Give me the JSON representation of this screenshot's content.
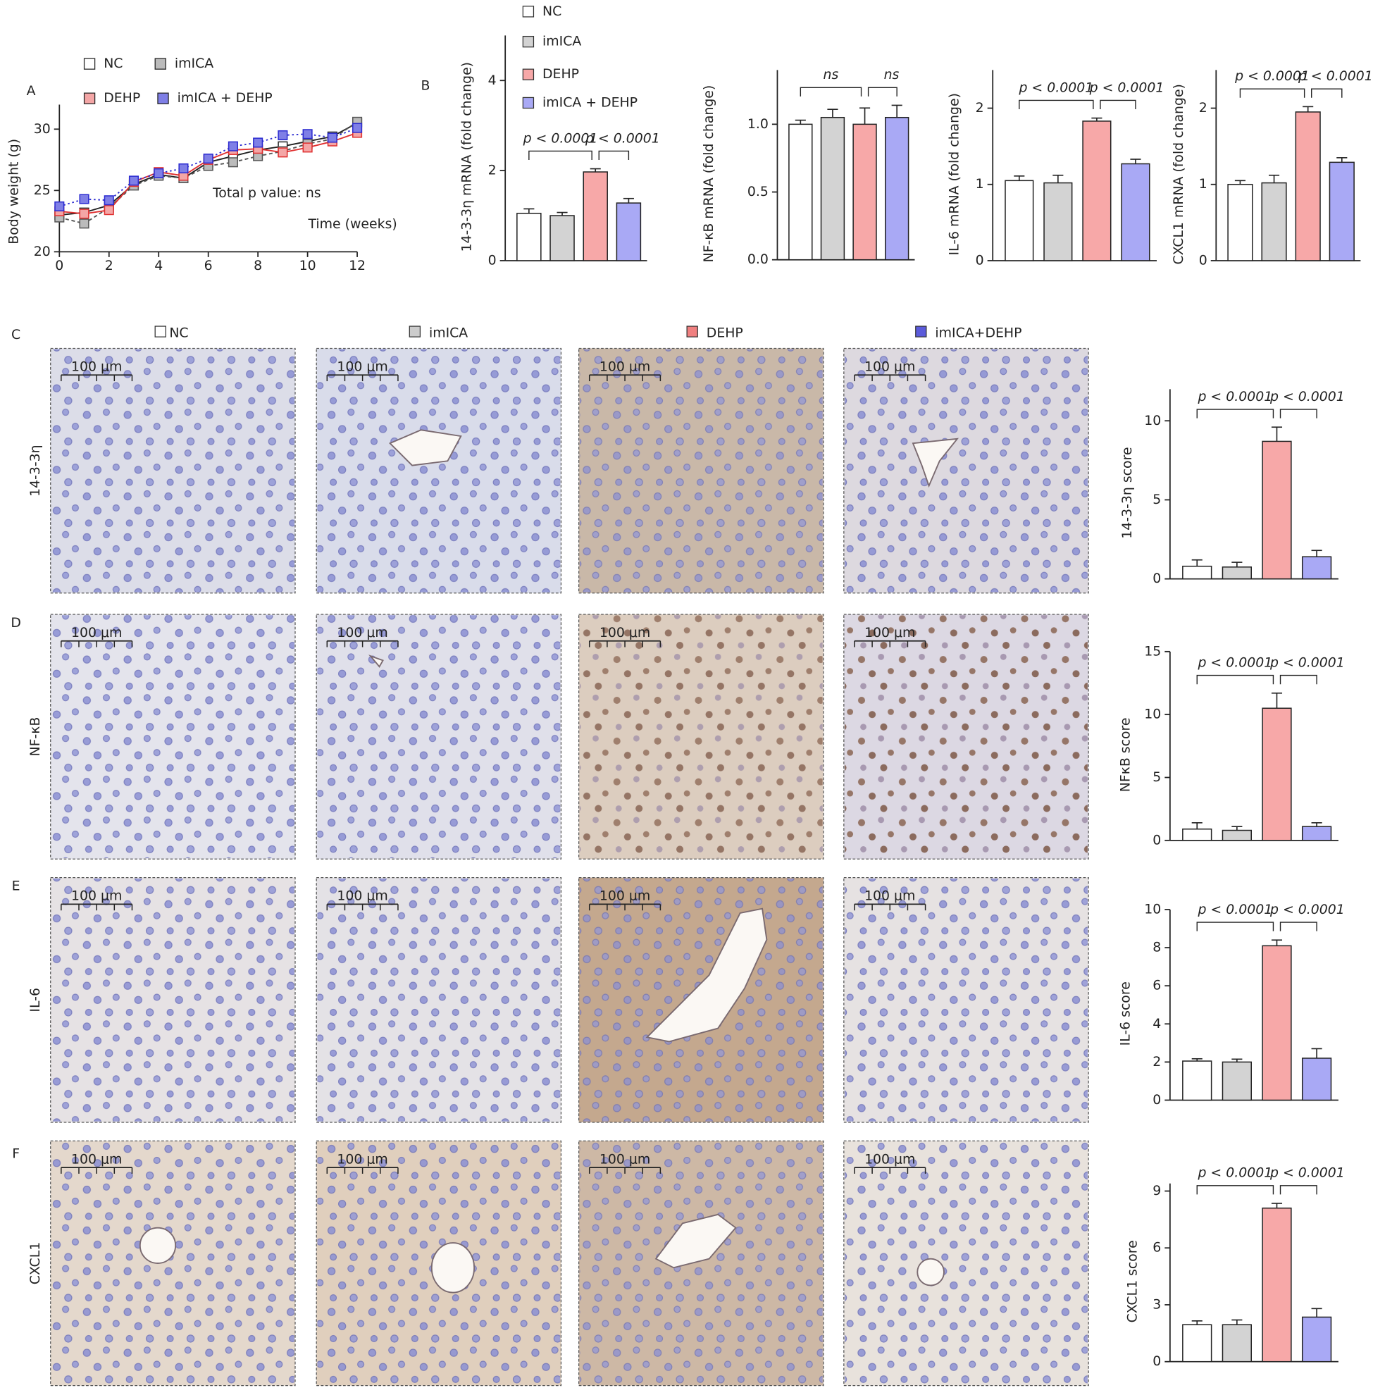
{
  "panel_labels": [
    "A",
    "B",
    "C",
    "D",
    "E",
    "F"
  ],
  "micrographs": {
    "columns": [
      "NC",
      "imICA",
      "DEHP",
      "imICA+DEHP"
    ],
    "column_colors": [
      "#ffffff",
      "#cccccc",
      "#f08080",
      "#5b5bdb"
    ],
    "rows": [
      "14-3-3η",
      "NF-κB",
      "IL-6",
      "CXCL1"
    ],
    "scale_bar": "100 μm"
  },
  "chart_data": [
    {
      "type": "line",
      "ylabel": "Body weight (g)",
      "xlabel": "Time (weeks)",
      "annotation": "Total p value: ns",
      "x": [
        0,
        1,
        2,
        3,
        4,
        5,
        6,
        7,
        8,
        9,
        10,
        11,
        12
      ],
      "xlim": [
        0,
        12
      ],
      "xticks": [
        0,
        2,
        4,
        6,
        8,
        10,
        12
      ],
      "ylim": [
        20,
        32
      ],
      "yticks": [
        20,
        25,
        30
      ],
      "series": [
        {
          "name": "NC",
          "color": "#222222",
          "marker_color": "#ffffff",
          "values": [
            23.0,
            23.2,
            23.8,
            25.5,
            26.3,
            26.0,
            27.3,
            27.8,
            28.3,
            28.6,
            29.0,
            29.4,
            30.5
          ]
        },
        {
          "name": "imICA",
          "color": "#555555",
          "marker_color": "#bbbbbb",
          "values": [
            22.8,
            22.3,
            23.6,
            25.4,
            26.2,
            26.0,
            27.0,
            27.3,
            27.8,
            28.2,
            28.8,
            29.2,
            30.6
          ]
        },
        {
          "name": "DEHP",
          "color": "#e03030",
          "marker_color": "#f4a6a6",
          "values": [
            23.3,
            23.1,
            23.4,
            25.7,
            26.5,
            26.2,
            27.5,
            28.3,
            28.4,
            28.1,
            28.5,
            29.0,
            29.7
          ]
        },
        {
          "name": "imICA + DEHP",
          "color": "#2b2bd0",
          "marker_color": "#7f7fe6",
          "values": [
            23.7,
            24.3,
            24.2,
            25.8,
            26.4,
            26.8,
            27.6,
            28.6,
            28.9,
            29.5,
            29.6,
            29.3,
            30.1
          ]
        }
      ]
    },
    {
      "type": "legend",
      "labels": [
        "NC",
        "imICA",
        "DEHP",
        "imICA + DEHP"
      ],
      "colors": [
        "#ffffff",
        "#d3d3d3",
        "#f7a8a8",
        "#a9a9f5"
      ]
    },
    {
      "type": "bar",
      "ylabel": "14-3-3η mRNA  (fold change)",
      "categories": [
        null,
        null,
        null,
        null
      ],
      "values": [
        1.05,
        1.0,
        1.97,
        1.28
      ],
      "errors": [
        0.1,
        0.07,
        0.07,
        0.1
      ],
      "colors": [
        "#ffffff",
        "#d3d3d3",
        "#f7a8a8",
        "#a9a9f5"
      ],
      "ylim": [
        0,
        5
      ],
      "yticks": [
        0,
        2,
        4
      ],
      "brackets": [
        "p < 0.0001",
        "p < 0.0001"
      ]
    },
    {
      "type": "bar",
      "ylabel": "NF-κB  mRNA  (fold change)",
      "categories": [
        null,
        null,
        null,
        null
      ],
      "values": [
        1.0,
        1.05,
        1.0,
        1.05
      ],
      "errors": [
        0.03,
        0.06,
        0.12,
        0.09
      ],
      "colors": [
        "#ffffff",
        "#d3d3d3",
        "#f7a8a8",
        "#a9a9f5"
      ],
      "ylim": [
        0,
        1.4
      ],
      "yticks": [
        {
          "value": 0,
          "label": "0.0"
        },
        0.5,
        {
          "value": 1,
          "label": "1.0"
        }
      ],
      "brackets": [
        "ns",
        "ns"
      ]
    },
    {
      "type": "bar",
      "ylabel": "IL-6 mRNA  (fold change)",
      "categories": [
        null,
        null,
        null,
        null
      ],
      "values": [
        1.05,
        1.02,
        1.83,
        1.27
      ],
      "errors": [
        0.06,
        0.1,
        0.04,
        0.06
      ],
      "colors": [
        "#ffffff",
        "#d3d3d3",
        "#f7a8a8",
        "#a9a9f5"
      ],
      "ylim": [
        0,
        2.5
      ],
      "yticks": [
        0,
        1,
        2
      ],
      "brackets": [
        "p < 0.0001",
        "p < 0.0001"
      ]
    },
    {
      "type": "bar",
      "ylabel": "CXCL1 mRNA  (fold change)",
      "categories": [
        null,
        null,
        null,
        null
      ],
      "values": [
        1.0,
        1.02,
        1.95,
        1.29
      ],
      "errors": [
        0.05,
        0.1,
        0.07,
        0.06
      ],
      "colors": [
        "#ffffff",
        "#d3d3d3",
        "#f7a8a8",
        "#a9a9f5"
      ],
      "ylim": [
        0,
        2.5
      ],
      "yticks": [
        0,
        1,
        2
      ],
      "brackets": [
        "p < 0.0001",
        "p < 0.0001"
      ]
    },
    {
      "type": "bar",
      "ylabel": "14-3-3η score",
      "categories": [
        null,
        null,
        null,
        null
      ],
      "values": [
        0.8,
        0.75,
        8.7,
        1.4
      ],
      "errors": [
        0.4,
        0.3,
        0.9,
        0.4
      ],
      "colors": [
        "#ffffff",
        "#d3d3d3",
        "#f7a8a8",
        "#a9a9f5"
      ],
      "ylim": [
        0,
        12
      ],
      "yticks": [
        0,
        5,
        10
      ],
      "brackets": [
        "p < 0.0001",
        "p < 0.0001"
      ]
    },
    {
      "type": "bar",
      "ylabel": "NFκB score",
      "categories": [
        null,
        null,
        null,
        null
      ],
      "values": [
        0.9,
        0.8,
        10.5,
        1.1
      ],
      "errors": [
        0.5,
        0.3,
        1.2,
        0.3
      ],
      "colors": [
        "#ffffff",
        "#d3d3d3",
        "#f7a8a8",
        "#a9a9f5"
      ],
      "ylim": [
        0,
        15
      ],
      "yticks": [
        0,
        5,
        10,
        15
      ],
      "brackets": [
        "p < 0.0001",
        "p < 0.0001"
      ]
    },
    {
      "type": "bar",
      "ylabel": "IL-6 score",
      "categories": [
        null,
        null,
        null,
        null
      ],
      "values": [
        2.05,
        2.0,
        8.1,
        2.2
      ],
      "errors": [
        0.12,
        0.15,
        0.3,
        0.5
      ],
      "colors": [
        "#ffffff",
        "#d3d3d3",
        "#f7a8a8",
        "#a9a9f5"
      ],
      "ylim": [
        0,
        10
      ],
      "yticks": [
        0,
        2,
        4,
        6,
        8,
        10
      ],
      "brackets": [
        "p < 0.0001",
        "p < 0.0001"
      ]
    },
    {
      "type": "bar",
      "ylabel": "CXCL1 score",
      "categories": [
        null,
        null,
        null,
        null
      ],
      "values": [
        1.95,
        1.95,
        8.1,
        2.35
      ],
      "errors": [
        0.2,
        0.25,
        0.25,
        0.45
      ],
      "colors": [
        "#ffffff",
        "#d3d3d3",
        "#f7a8a8",
        "#a9a9f5"
      ],
      "ylim": [
        0,
        9.4
      ],
      "yticks": [
        0,
        3,
        6,
        9
      ],
      "brackets": [
        "p < 0.0001",
        "p < 0.0001"
      ]
    }
  ]
}
